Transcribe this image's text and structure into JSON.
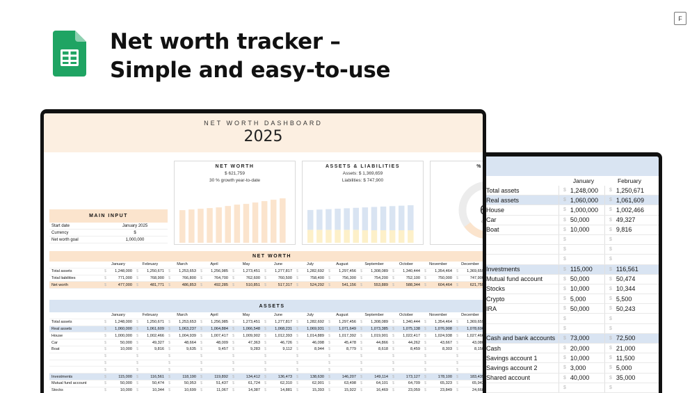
{
  "header": {
    "title_line1": "Net worth tracker –",
    "title_line2": "Simple and easy-to-use",
    "corner_badge": "F"
  },
  "colors": {
    "accent_peach": "#fbe4cd",
    "accent_blue": "#d9e4f2",
    "sheets_green": "#1fa463"
  },
  "dashboard": {
    "subtitle": "NET WORTH DASHBOARD",
    "year": "2025",
    "net_worth_card": {
      "title": "NET WORTH",
      "amount": "$ 621,759",
      "growth": "30 %  growth year-to-date",
      "bar_levels": [
        0.47,
        0.48,
        0.49,
        0.5,
        0.51,
        0.53,
        0.55,
        0.56,
        0.58,
        0.6,
        0.62,
        0.64
      ]
    },
    "assets_card": {
      "title": "ASSETS & LIABILITIES",
      "assets_line": "Assets:  $ 1,369,659",
      "liabilities_line": "Liabilities:  $ 747,900",
      "asset_levels": [
        0.76,
        0.77,
        0.78,
        0.79,
        0.8,
        0.81,
        0.82,
        0.83,
        0.84,
        0.85,
        0.86,
        0.87
      ],
      "liability_levels": [
        0.3,
        0.3,
        0.3,
        0.3,
        0.3,
        0.3,
        0.29,
        0.29,
        0.29,
        0.29,
        0.29,
        0.29
      ]
    },
    "third_card": {
      "title_fragment": "% C",
      "value_fragment": "6",
      "small_fragment": "of"
    },
    "main_input": {
      "title": "MAIN INPUT",
      "rows": [
        {
          "k": "Start date",
          "v": "January 2025"
        },
        {
          "k": "Currency",
          "v": "$"
        },
        {
          "k": "Net worth goal",
          "v": "1,000,000"
        }
      ]
    },
    "months": [
      "January",
      "February",
      "March",
      "April",
      "May",
      "June",
      "July",
      "August",
      "September",
      "October",
      "November",
      "December"
    ],
    "net_worth_section": {
      "title": "NET WORTH",
      "rows": [
        {
          "label": "Total assets",
          "values": [
            "1,248,000",
            "1,250,671",
            "1,253,653",
            "1,256,985",
            "1,273,451",
            "1,277,817",
            "1,282,692",
            "1,297,456",
            "1,308,089",
            "1,340,444",
            "1,354,464",
            "1,369,659"
          ]
        },
        {
          "label": "Total liabilities",
          "values": [
            "771,000",
            "768,900",
            "766,800",
            "764,700",
            "762,600",
            "760,500",
            "758,400",
            "756,300",
            "754,200",
            "752,100",
            "750,000",
            "747,900"
          ]
        },
        {
          "label": "Net worth",
          "values": [
            "477,000",
            "481,771",
            "486,853",
            "492,285",
            "510,851",
            "517,317",
            "524,292",
            "541,156",
            "553,889",
            "588,344",
            "604,464",
            "621,759"
          ],
          "style": "peach"
        }
      ]
    },
    "assets_section": {
      "title": "ASSETS",
      "rows": [
        {
          "label": "Total assets",
          "values": [
            "1,248,000",
            "1,250,671",
            "1,253,653",
            "1,256,985",
            "1,273,451",
            "1,277,817",
            "1,282,692",
            "1,297,456",
            "1,308,089",
            "1,340,444",
            "1,354,464",
            "1,369,659"
          ]
        },
        {
          "label": "Real assets",
          "values": [
            "1,060,000",
            "1,061,609",
            "1,063,237",
            "1,064,884",
            "1,066,548",
            "1,068,231",
            "1,069,931",
            "1,071,649",
            "1,073,385",
            "1,075,138",
            "1,076,908",
            "1,078,696"
          ],
          "style": "blue"
        },
        {
          "label": "House",
          "values": [
            "1,000,000",
            "1,002,466",
            "1,004,939",
            "1,007,417",
            "1,009,902",
            "1,012,393",
            "1,014,889",
            "1,017,392",
            "1,019,901",
            "1,022,417",
            "1,024,938",
            "1,027,466"
          ]
        },
        {
          "label": "Car",
          "values": [
            "50,000",
            "49,327",
            "48,664",
            "48,009",
            "47,363",
            "46,726",
            "46,098",
            "45,478",
            "44,866",
            "44,262",
            "43,667",
            "43,080"
          ]
        },
        {
          "label": "Boat",
          "values": [
            "10,000",
            "9,816",
            "9,635",
            "9,457",
            "9,283",
            "9,112",
            "8,944",
            "8,779",
            "8,618",
            "8,459",
            "8,303",
            "8,150"
          ]
        },
        {
          "label": "",
          "values": [
            "",
            "",
            "",
            "",
            "",
            "",
            "",
            "",
            "",
            "",
            "",
            ""
          ]
        },
        {
          "label": "",
          "values": [
            "",
            "",
            "",
            "",
            "",
            "",
            "",
            "",
            "",
            "",
            "",
            ""
          ]
        },
        {
          "label": "",
          "values": [
            "",
            "",
            "",
            "",
            "",
            "",
            "",
            "",
            "",
            "",
            "",
            ""
          ]
        },
        {
          "label": "Investments",
          "values": [
            "115,000",
            "116,561",
            "118,190",
            "119,892",
            "134,412",
            "136,473",
            "138,630",
            "146,207",
            "149,114",
            "173,127",
            "178,100",
            "183,439"
          ],
          "style": "blue"
        },
        {
          "label": "Mutual fund account",
          "values": [
            "50,000",
            "50,474",
            "50,953",
            "51,437",
            "61,724",
            "62,310",
            "62,901",
            "63,498",
            "64,101",
            "64,709",
            "65,323",
            "65,943"
          ]
        },
        {
          "label": "Stocks",
          "values": [
            "10,000",
            "10,344",
            "10,699",
            "11,067",
            "14,387",
            "14,881",
            "15,393",
            "15,922",
            "16,469",
            "23,059",
            "23,849",
            "24,668"
          ]
        }
      ]
    }
  },
  "back_sheet": {
    "months": [
      "January",
      "February"
    ],
    "rows": [
      {
        "label": "Total assets",
        "v1": "1,248,000",
        "v2": "1,250,671"
      },
      {
        "label": "Real assets",
        "v1": "1,060,000",
        "v2": "1,061,609",
        "style": "blue"
      },
      {
        "label": "House",
        "v1": "1,000,000",
        "v2": "1,002,466"
      },
      {
        "label": "Car",
        "v1": "50,000",
        "v2": "49,327"
      },
      {
        "label": "Boat",
        "v1": "10,000",
        "v2": "9,816"
      },
      {
        "label": "",
        "v1": "",
        "v2": ""
      },
      {
        "label": "",
        "v1": "",
        "v2": ""
      },
      {
        "label": "",
        "v1": "",
        "v2": ""
      },
      {
        "label": "Investments",
        "v1": "115,000",
        "v2": "116,561",
        "style": "blue"
      },
      {
        "label": "Mutual fund account",
        "v1": "50,000",
        "v2": "50,474"
      },
      {
        "label": "Stocks",
        "v1": "10,000",
        "v2": "10,344"
      },
      {
        "label": "Crypto",
        "v1": "5,000",
        "v2": "5,500"
      },
      {
        "label": "IRA",
        "v1": "50,000",
        "v2": "50,243"
      },
      {
        "label": "",
        "v1": "",
        "v2": ""
      },
      {
        "label": "",
        "v1": "",
        "v2": ""
      },
      {
        "label": "Cash and bank accounts",
        "v1": "73,000",
        "v2": "72,500",
        "style": "blue"
      },
      {
        "label": "Cash",
        "v1": "20,000",
        "v2": "21,000"
      },
      {
        "label": "Savings account 1",
        "v1": "10,000",
        "v2": "11,500"
      },
      {
        "label": "Savings account 2",
        "v1": "3,000",
        "v2": "5,000"
      },
      {
        "label": "Shared account",
        "v1": "40,000",
        "v2": "35,000"
      },
      {
        "label": "",
        "v1": "",
        "v2": ""
      }
    ],
    "currency": "$"
  }
}
